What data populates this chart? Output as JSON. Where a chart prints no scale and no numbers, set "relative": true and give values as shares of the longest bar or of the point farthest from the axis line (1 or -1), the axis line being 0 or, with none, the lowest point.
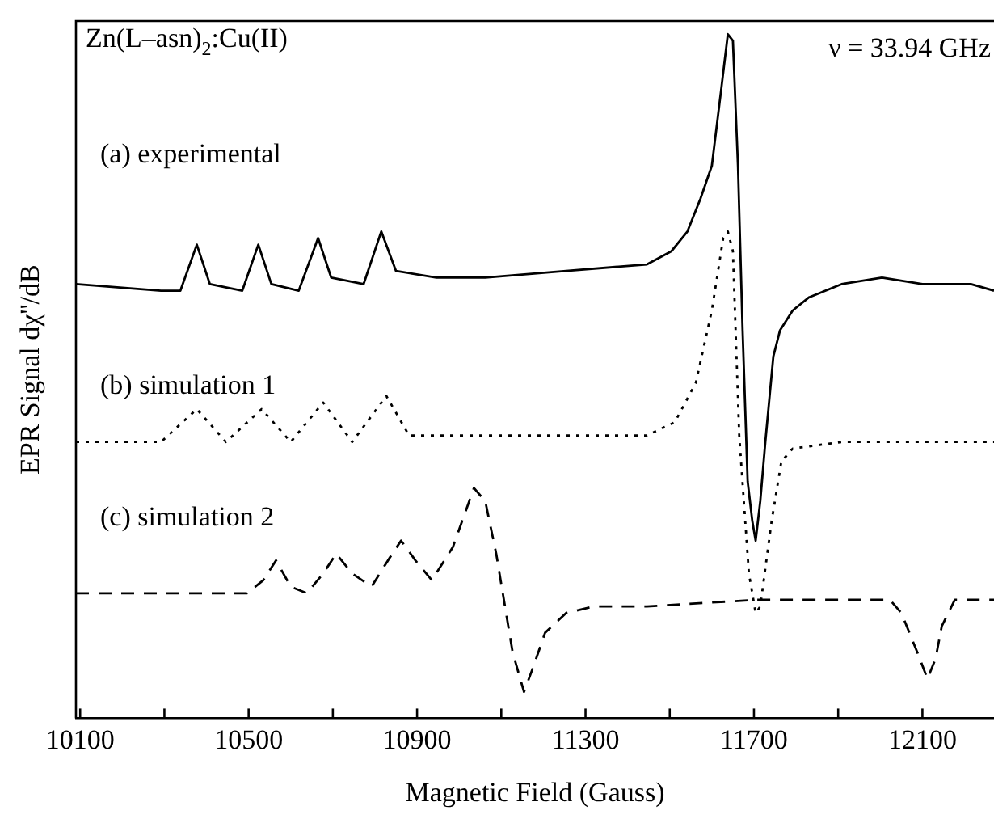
{
  "chart_data": {
    "type": "line",
    "relative": true,
    "xlabel": "Magnetic Field (Gauss)",
    "ylabel": "EPR Signal dχ''/dB",
    "annotations": [
      "Zn(L–asn)$_{2}$:Cu(II)",
      "ν = 33.94 GHz"
    ],
    "xlim": [
      10090,
      12270
    ],
    "xticks": [
      10100,
      {
        "value": 10300,
        "label": null
      },
      10500,
      {
        "value": 10700,
        "label": null
      },
      10900,
      {
        "value": 11100,
        "label": null
      },
      11300,
      {
        "value": 11500,
        "label": null
      },
      11700,
      {
        "value": 11900,
        "label": null
      },
      12100
    ],
    "grid": false,
    "legend": false,
    "marker": "none",
    "series": [
      {
        "name": "(a) experimental",
        "color": "#000000",
        "line_style": "solid",
        "x": [
          10090,
          10292,
          10338,
          10377,
          10408,
          10485,
          10523,
          10554,
          10619,
          10665,
          10696,
          10773,
          10815,
          10850,
          10946,
          11062,
          11254,
          11446,
          11504,
          11542,
          11573,
          11600,
          11623,
          11638,
          11650,
          11662,
          11673,
          11685,
          11696,
          11704,
          11715,
          11727,
          11746,
          11762,
          11792,
          11831,
          11908,
          12004,
          12100,
          12215,
          12270
        ],
        "values": [
          0.62,
          0.61,
          0.61,
          0.68,
          0.62,
          0.61,
          0.68,
          0.62,
          0.61,
          0.69,
          0.63,
          0.62,
          0.7,
          0.64,
          0.63,
          0.63,
          0.64,
          0.65,
          0.67,
          0.7,
          0.75,
          0.8,
          0.92,
          1.0,
          0.99,
          0.8,
          0.55,
          0.32,
          0.26,
          0.23,
          0.29,
          0.38,
          0.51,
          0.55,
          0.58,
          0.6,
          0.62,
          0.63,
          0.62,
          0.62,
          0.61
        ]
      },
      {
        "name": "(b) simulation 1",
        "color": "#000000",
        "line_style": "dotted",
        "x": [
          10090,
          10215,
          10292,
          10377,
          10446,
          10531,
          10600,
          10677,
          10746,
          10827,
          10881,
          11062,
          11446,
          11512,
          11562,
          11600,
          11627,
          11638,
          11650,
          11665,
          11688,
          11704,
          11715,
          11742,
          11765,
          11792,
          11908,
          12270
        ],
        "values": [
          0.38,
          0.38,
          0.38,
          0.43,
          0.38,
          0.43,
          0.38,
          0.44,
          0.38,
          0.45,
          0.39,
          0.39,
          0.39,
          0.41,
          0.47,
          0.58,
          0.69,
          0.7,
          0.67,
          0.39,
          0.18,
          0.12,
          0.13,
          0.26,
          0.35,
          0.37,
          0.38,
          0.38
        ]
      },
      {
        "name": "(c) simulation 2",
        "color": "#000000",
        "line_style": "dashed",
        "x": [
          10090,
          10496,
          10535,
          10565,
          10600,
          10638,
          10677,
          10708,
          10746,
          10792,
          10831,
          10862,
          10896,
          10935,
          10985,
          11035,
          11062,
          11088,
          11127,
          11154,
          11177,
          11204,
          11254,
          11319,
          11446,
          11704,
          12023,
          12050,
          12088,
          12112,
          12131,
          12146,
          12177,
          12270
        ],
        "values": [
          0.15,
          0.15,
          0.17,
          0.2,
          0.16,
          0.15,
          0.18,
          0.21,
          0.18,
          0.16,
          0.2,
          0.23,
          0.2,
          0.17,
          0.22,
          0.31,
          0.29,
          0.21,
          0.06,
          0.0,
          0.04,
          0.09,
          0.12,
          0.13,
          0.13,
          0.14,
          0.14,
          0.12,
          0.06,
          0.02,
          0.05,
          0.1,
          0.14,
          0.14
        ]
      }
    ]
  }
}
